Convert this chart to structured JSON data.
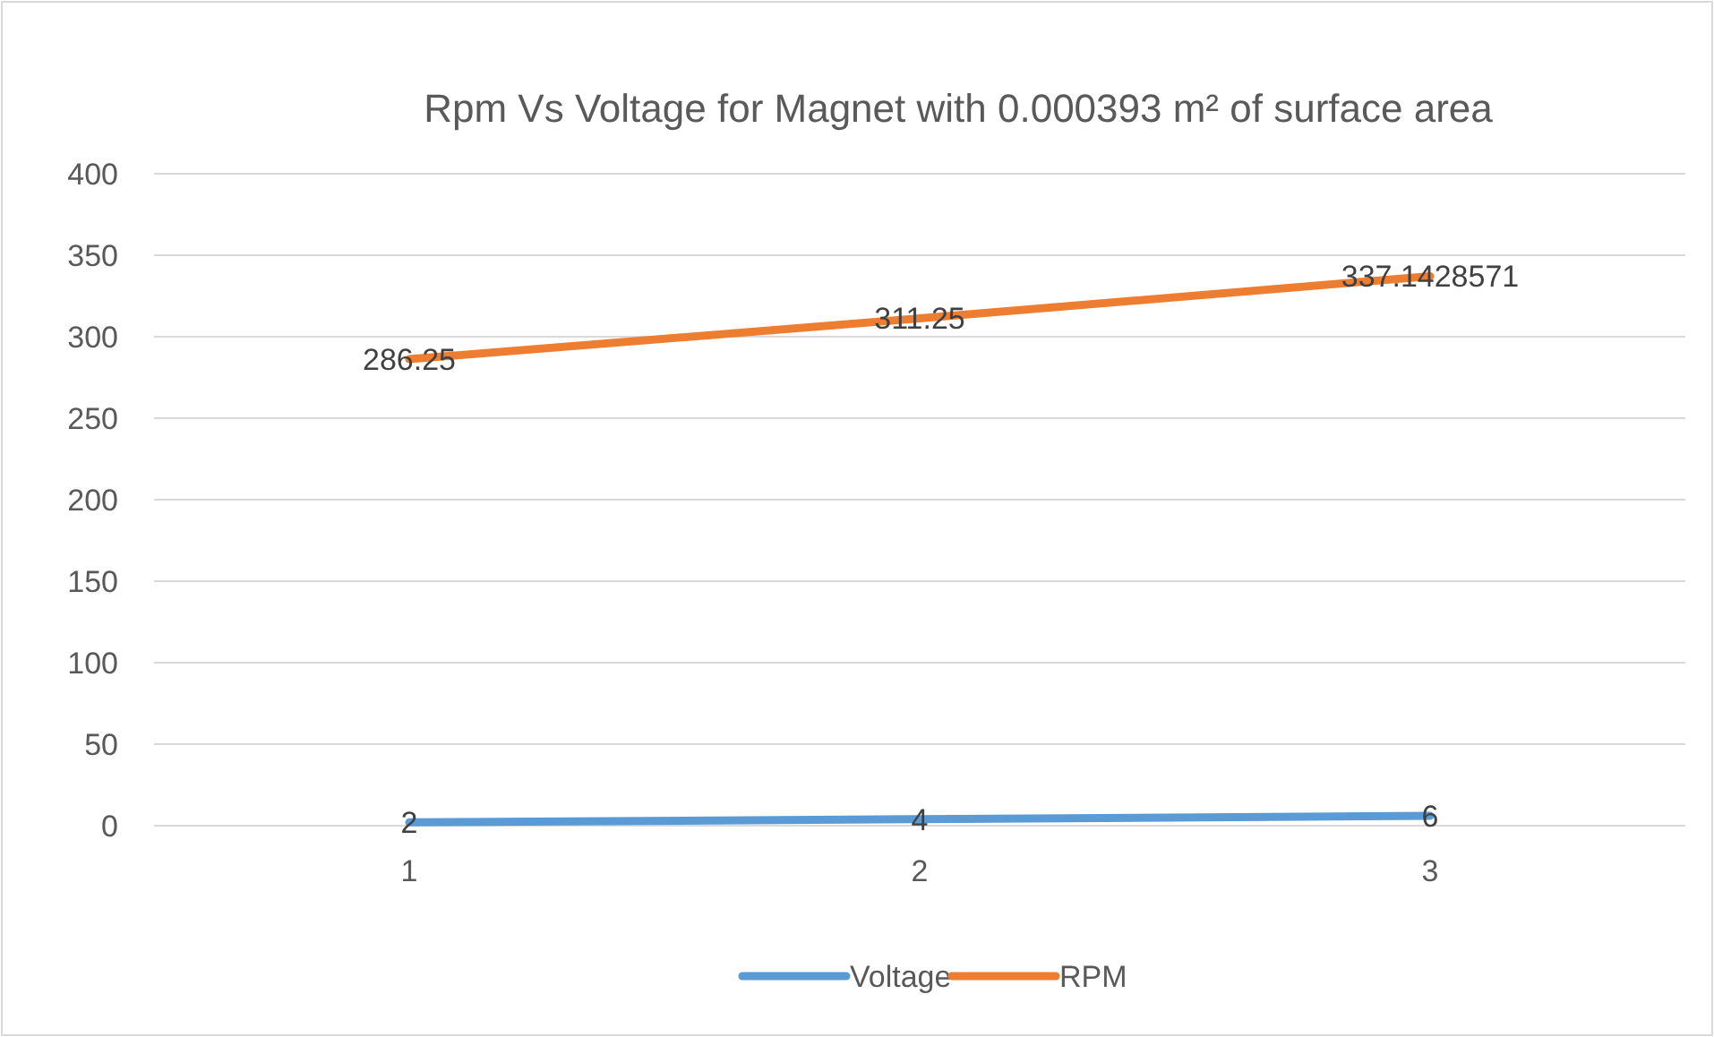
{
  "chart_data": {
    "type": "line",
    "title": "Rpm Vs Voltage for Magnet with 0.000393 m² of surface area",
    "categories": [
      "1",
      "2",
      "3"
    ],
    "series": [
      {
        "name": "Voltage",
        "color": "#5b9bd5",
        "values": [
          2,
          4,
          6
        ]
      },
      {
        "name": "RPM",
        "color": "#ed7d31",
        "values": [
          286.25,
          311.25,
          337.1428571
        ]
      }
    ],
    "ylim": [
      0,
      400
    ],
    "yticks": [
      0,
      50,
      100,
      150,
      200,
      250,
      300,
      350,
      400
    ],
    "grid": "y",
    "legend": "bottom",
    "data_labels": true,
    "marker": "none",
    "line_style": "solid"
  }
}
